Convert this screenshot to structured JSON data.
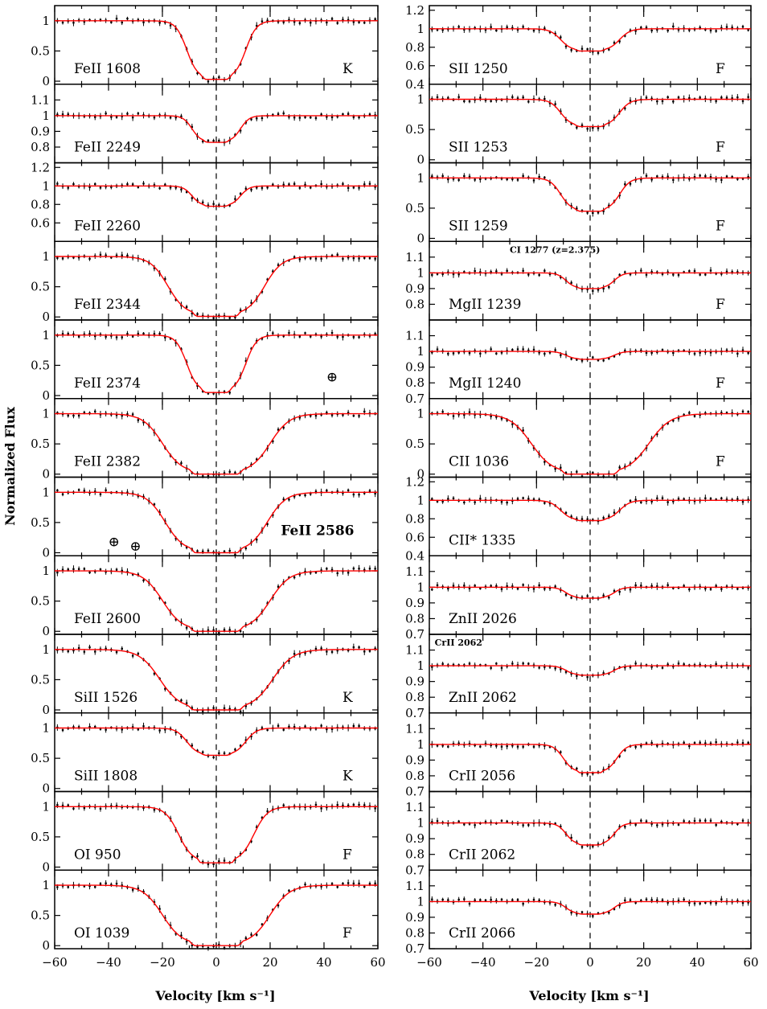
{
  "axes": {
    "xlabel": "Velocity [km s⁻¹]",
    "ylabel": "Normalized Flux"
  },
  "chart_data": {
    "type": "line",
    "xlim": [
      -60,
      60
    ],
    "xticks": [
      -60,
      -40,
      -20,
      0,
      20,
      40,
      60
    ],
    "component_marks_kmps": [
      -20,
      0,
      20
    ],
    "columns": [
      {
        "column": "left",
        "panels": [
          {
            "label": "FeII 1608",
            "flag": "K",
            "ylim": [
              -0.05,
              1.25
            ],
            "yticks": [
              0,
              0.5,
              1
            ],
            "ytick_labels": [
              "0",
              "0.5",
              "1"
            ],
            "model": {
              "width": 11,
              "depth": 0.97,
              "wings": []
            },
            "tellurics": []
          },
          {
            "label": "FeII 2249",
            "flag": "",
            "ylim": [
              0.7,
              1.2
            ],
            "yticks": [
              0.8,
              0.9,
              1,
              1.1
            ],
            "ytick_labels": [
              "0.8",
              "0.9",
              "1",
              "1.1"
            ],
            "model": {
              "width": 9,
              "depth": 0.17,
              "wings": []
            },
            "tellurics": []
          },
          {
            "label": "FeII 2260",
            "flag": "",
            "ylim": [
              0.4,
              1.25
            ],
            "yticks": [
              0.6,
              0.8,
              1,
              1.2
            ],
            "ytick_labels": [
              "0.6",
              "0.8",
              "1",
              "1.2"
            ],
            "model": {
              "width": 9,
              "depth": 0.22,
              "wings": []
            },
            "tellurics": []
          },
          {
            "label": "FeII 2344",
            "flag": "",
            "ylim": [
              -0.05,
              1.25
            ],
            "yticks": [
              0,
              0.5,
              1
            ],
            "ytick_labels": [
              "0",
              "0.5",
              "1"
            ],
            "model": {
              "width": 18,
              "depth": 0.99,
              "wings": []
            },
            "tellurics": []
          },
          {
            "label": "FeII 2374",
            "flag": "",
            "ylim": [
              -0.05,
              1.25
            ],
            "yticks": [
              0,
              0.5,
              1
            ],
            "ytick_labels": [
              "0",
              "0.5",
              "1"
            ],
            "model": {
              "width": 11,
              "depth": 0.95,
              "wings": []
            },
            "tellurics": [
              {
                "x": 43,
                "y": 0.3
              }
            ]
          },
          {
            "label": "FeII 2382",
            "flag": "",
            "ylim": [
              -0.05,
              1.25
            ],
            "yticks": [
              0,
              0.5,
              1
            ],
            "ytick_labels": [
              "0",
              "0.5",
              "1"
            ],
            "model": {
              "width": 20,
              "depth": 1.0,
              "wings": []
            },
            "tellurics": []
          },
          {
            "label": "FeII 2586",
            "flag": "",
            "ylim": [
              -0.05,
              1.25
            ],
            "yticks": [
              0,
              0.5,
              1
            ],
            "ytick_labels": [
              "0",
              "0.5",
              "1"
            ],
            "model": {
              "width": 19,
              "depth": 1.0,
              "wings": []
            },
            "tellurics": [
              {
                "x": -38,
                "y": 0.17
              },
              {
                "x": -30,
                "y": 0.1
              }
            ]
          },
          {
            "label": "FeII 2600",
            "flag": "",
            "ylim": [
              -0.05,
              1.25
            ],
            "yticks": [
              0,
              0.5,
              1
            ],
            "ytick_labels": [
              "0",
              "0.5",
              "1"
            ],
            "model": {
              "width": 20,
              "depth": 1.0,
              "wings": []
            },
            "tellurics": []
          },
          {
            "label": "SiII 1526",
            "flag": "K",
            "ylim": [
              -0.05,
              1.25
            ],
            "yticks": [
              0,
              0.5,
              1
            ],
            "ytick_labels": [
              "0",
              "0.5",
              "1"
            ],
            "model": {
              "width": 21,
              "depth": 1.0,
              "wings": []
            },
            "tellurics": []
          },
          {
            "label": "SiII 1808",
            "flag": "K",
            "ylim": [
              -0.05,
              1.25
            ],
            "yticks": [
              0,
              0.5,
              1
            ],
            "ytick_labels": [
              "0",
              "0.5",
              "1"
            ],
            "model": {
              "width": 11,
              "depth": 0.45,
              "wings": []
            },
            "tellurics": []
          },
          {
            "label": "OI 950",
            "flag": "F",
            "ylim": [
              -0.05,
              1.25
            ],
            "yticks": [
              0,
              0.5,
              1
            ],
            "ytick_labels": [
              "0",
              "0.5",
              "1"
            ],
            "model": {
              "width": 14,
              "depth": 0.93,
              "wings": []
            },
            "tellurics": []
          },
          {
            "label": "OI 1039",
            "flag": "F",
            "ylim": [
              -0.05,
              1.25
            ],
            "yticks": [
              0,
              0.5,
              1
            ],
            "ytick_labels": [
              "0",
              "0.5",
              "1"
            ],
            "model": {
              "width": 20,
              "depth": 1.0,
              "wings": []
            },
            "tellurics": []
          }
        ]
      },
      {
        "column": "right",
        "panels": [
          {
            "label": "SII 1250",
            "flag": "F",
            "ylim": [
              0.4,
              1.25
            ],
            "yticks": [
              0.4,
              0.6,
              0.8,
              1,
              1.2
            ],
            "ytick_labels": [
              "0.4",
              "0.6",
              "0.8",
              "1",
              "1.2"
            ],
            "model": {
              "width": 11,
              "depth": 0.24,
              "wings": []
            },
            "tellurics": []
          },
          {
            "label": "SII 1253",
            "flag": "F",
            "ylim": [
              -0.05,
              1.25
            ],
            "yticks": [
              0,
              0.5,
              1
            ],
            "ytick_labels": [
              "0",
              "0.5",
              "1"
            ],
            "model": {
              "width": 11,
              "depth": 0.45,
              "wings": []
            },
            "tellurics": []
          },
          {
            "label": "SII 1259",
            "flag": "F",
            "ylim": [
              -0.05,
              1.25
            ],
            "yticks": [
              0,
              0.5,
              1
            ],
            "ytick_labels": [
              "0",
              "0.5",
              "1"
            ],
            "model": {
              "width": 11,
              "depth": 0.55,
              "wings": []
            },
            "tellurics": []
          },
          {
            "label": "MgII 1239",
            "flag": "F",
            "ylim": [
              0.7,
              1.2
            ],
            "yticks": [
              0.8,
              0.9,
              1,
              1.1
            ],
            "ytick_labels": [
              "0.8",
              "0.9",
              "1",
              "1.1"
            ],
            "model": {
              "width": 9,
              "depth": 0.1,
              "wings": []
            },
            "tellurics": []
          },
          {
            "label": "MgII 1240",
            "flag": "F",
            "ylim": [
              0.7,
              1.2
            ],
            "yticks": [
              0.7,
              0.8,
              0.9,
              1,
              1.1
            ],
            "ytick_labels": [
              "0.7",
              "0.8",
              "0.9",
              "1",
              "1.1"
            ],
            "model": {
              "width": 9,
              "depth": 0.05,
              "wings": []
            },
            "tellurics": []
          },
          {
            "label": "CII 1036",
            "flag": "F",
            "ylim": [
              -0.05,
              1.25
            ],
            "yticks": [
              0,
              0.5,
              1
            ],
            "ytick_labels": [
              "0",
              "0.5",
              "1"
            ],
            "model": {
              "width": 22,
              "depth": 1.0,
              "wings": []
            },
            "tellurics": []
          },
          {
            "label": "CII* 1335",
            "flag": "",
            "ylim": [
              0.4,
              1.25
            ],
            "yticks": [
              0.4,
              0.6,
              0.8,
              1,
              1.2
            ],
            "ytick_labels": [
              "0.4",
              "0.6",
              "0.8",
              "1",
              "1.2"
            ],
            "model": {
              "width": 11,
              "depth": 0.22,
              "wings": []
            },
            "tellurics": []
          },
          {
            "label": "ZnII 2026",
            "flag": "",
            "ylim": [
              0.7,
              1.2
            ],
            "yticks": [
              0.7,
              0.8,
              0.9,
              1,
              1.1
            ],
            "ytick_labels": [
              "0.7",
              "0.8",
              "0.9",
              "1",
              "1.1"
            ],
            "model": {
              "width": 9,
              "depth": 0.07,
              "wings": []
            },
            "tellurics": []
          },
          {
            "label": "ZnII 2062",
            "flag": "",
            "ylim": [
              0.7,
              1.2
            ],
            "yticks": [
              0.7,
              0.8,
              0.9,
              1,
              1.1
            ],
            "ytick_labels": [
              "0.7",
              "0.8",
              "0.9",
              "1",
              "1.1"
            ],
            "model": {
              "width": 9,
              "depth": 0.06,
              "wings": []
            },
            "tellurics": []
          },
          {
            "label": "CrII 2056",
            "flag": "",
            "ylim": [
              0.7,
              1.2
            ],
            "yticks": [
              0.7,
              0.8,
              0.9,
              1,
              1.1
            ],
            "ytick_labels": [
              "0.7",
              "0.8",
              "0.9",
              "1",
              "1.1"
            ],
            "model": {
              "width": 10,
              "depth": 0.18,
              "wings": []
            },
            "tellurics": []
          },
          {
            "label": "CrII 2062",
            "flag": "",
            "ylim": [
              0.7,
              1.2
            ],
            "yticks": [
              0.7,
              0.8,
              0.9,
              1,
              1.1
            ],
            "ytick_labels": [
              "0.7",
              "0.8",
              "0.9",
              "1",
              "1.1"
            ],
            "model": {
              "width": 9,
              "depth": 0.14,
              "wings": []
            },
            "tellurics": []
          },
          {
            "label": "CrII 2066",
            "flag": "",
            "ylim": [
              0.7,
              1.2
            ],
            "yticks": [
              0.7,
              0.8,
              0.9,
              1,
              1.1
            ],
            "ytick_labels": [
              "0.7",
              "0.8",
              "0.9",
              "1",
              "1.1"
            ],
            "model": {
              "width": 9,
              "depth": 0.08,
              "wings": []
            },
            "tellurics": []
          }
        ]
      }
    ],
    "annotations": [
      {
        "column": "right",
        "panel": 3,
        "text": "CI 1277 (z=2.375)",
        "x": -30
      },
      {
        "column": "right",
        "panel": 8,
        "text": "CrII 2062",
        "x": -58
      }
    ],
    "bold_labels": [
      "FeII 2586"
    ]
  }
}
